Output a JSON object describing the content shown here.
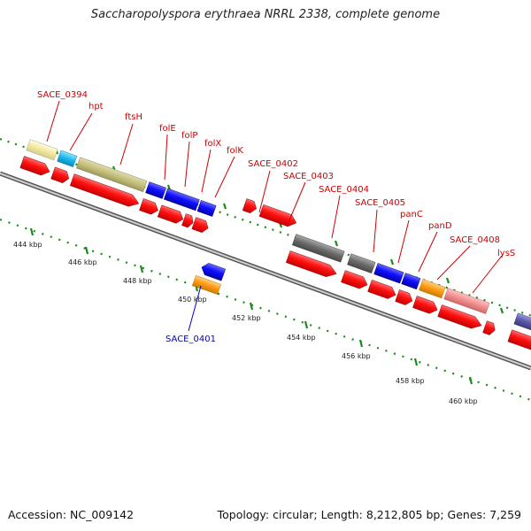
{
  "title": "Saccharopolyspora erythraea NRRL 2338, complete genome",
  "footer": {
    "accession": "Accession: NC_009142",
    "summary": "Topology: circular; Length: 8,212,805 bp; Genes: 7,259"
  },
  "ruler_labels": [
    "444 kbp",
    "446 kbp",
    "448 kbp",
    "450 kbp",
    "452 kbp",
    "454 kbp",
    "456 kbp",
    "458 kbp",
    "460 kbp"
  ],
  "gene_labels": [
    "SACE_0394",
    "hpt",
    "ftsH",
    "folE",
    "folP",
    "folX",
    "folK",
    "SACE_0402",
    "SACE_0403",
    "SACE_0404",
    "SACE_0405",
    "panC",
    "panD",
    "SACE_0408",
    "lysS",
    "SACE_0401"
  ],
  "colors": {
    "forward_label": "#cc0000",
    "reverse_label": "#0000cc",
    "cds": "#ff0000",
    "backbone": "#888888",
    "ticks": "#1a8a1a"
  }
}
